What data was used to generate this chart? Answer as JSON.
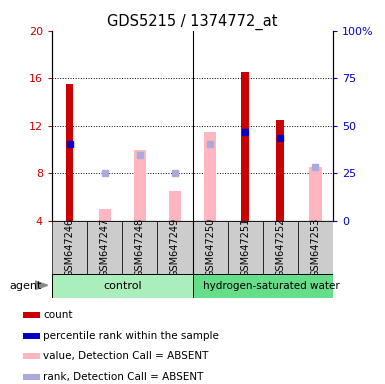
{
  "title": "GDS5215 / 1374772_at",
  "samples": [
    "GSM647246",
    "GSM647247",
    "GSM647248",
    "GSM647249",
    "GSM647250",
    "GSM647251",
    "GSM647252",
    "GSM647253"
  ],
  "ylim_left": [
    4,
    20
  ],
  "ylim_right": [
    0,
    100
  ],
  "yticks_left": [
    4,
    8,
    12,
    16,
    20
  ],
  "yticks_right": [
    0,
    25,
    50,
    75,
    100
  ],
  "ytick_labels_left": [
    "4",
    "8",
    "12",
    "16",
    "20"
  ],
  "ytick_labels_right": [
    "0",
    "25",
    "50",
    "75",
    "100%"
  ],
  "red_bars": [
    15.5,
    null,
    null,
    null,
    null,
    16.5,
    12.5,
    null
  ],
  "blue_dots": [
    10.5,
    null,
    null,
    null,
    null,
    11.5,
    11.0,
    null
  ],
  "pink_bars": [
    null,
    5.0,
    10.0,
    6.5,
    11.5,
    null,
    null,
    8.5
  ],
  "light_blue_dots": [
    null,
    8.0,
    9.5,
    8.0,
    10.5,
    null,
    null,
    8.5
  ],
  "red_color": "#CC0000",
  "blue_color": "#0000CC",
  "pink_color": "#FFB6C1",
  "light_blue_color": "#AAAADD",
  "bar_bottom": 4,
  "bar_width": 0.55,
  "pink_bar_width": 0.35,
  "group_split": 3.5,
  "legend_items": [
    {
      "color": "#CC0000",
      "label": "count"
    },
    {
      "color": "#0000CC",
      "label": "percentile rank within the sample"
    },
    {
      "color": "#FFB6C1",
      "label": "value, Detection Call = ABSENT"
    },
    {
      "color": "#AAAADD",
      "label": "rank, Detection Call = ABSENT"
    }
  ],
  "agent_label": "agent",
  "control_label": "control",
  "hw_label": "hydrogen-saturated water",
  "control_color": "#AAEEBB",
  "hw_color": "#66DD88",
  "sample_box_color": "#CCCCCC"
}
